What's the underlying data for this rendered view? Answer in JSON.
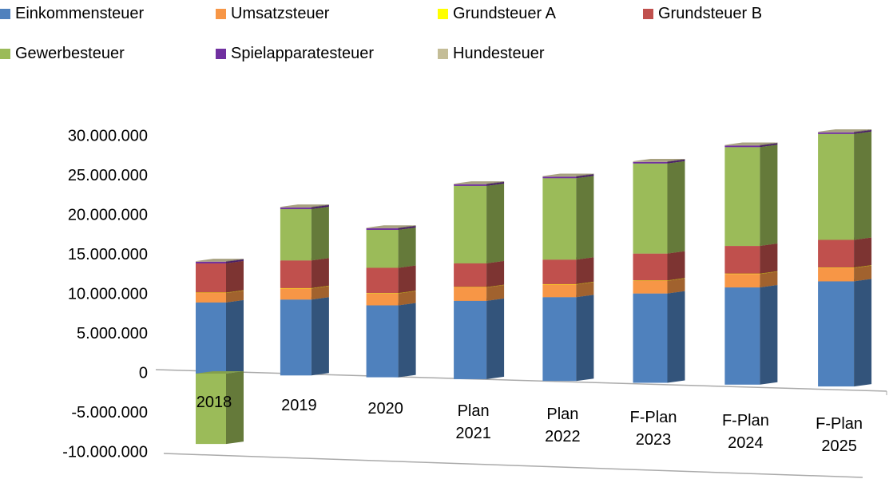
{
  "chart_data": {
    "type": "bar3d_stacked",
    "categories": [
      "2018",
      "2019",
      "2020",
      "Plan 2021",
      "Plan 2022",
      "F-Plan 2023",
      "F-Plan 2024",
      "F-Plan 2025"
    ],
    "series": [
      {
        "name": "Einkommensteuer",
        "color": "#4f81bd",
        "values": [
          9000000,
          9600000,
          9100000,
          9900000,
          10600000,
          11300000,
          12300000,
          13300000
        ]
      },
      {
        "name": "Umsatzsteuer",
        "color": "#f79646",
        "values": [
          1200000,
          1400000,
          1500000,
          1700000,
          1600000,
          1600000,
          1700000,
          1700000
        ]
      },
      {
        "name": "Grundsteuer A",
        "color": "#ffff00",
        "values": [
          50000,
          50000,
          50000,
          50000,
          50000,
          50000,
          50000,
          50000
        ]
      },
      {
        "name": "Grundsteuer B",
        "color": "#c0504d",
        "values": [
          3700000,
          3500000,
          3200000,
          3000000,
          3100000,
          3400000,
          3500000,
          3500000
        ]
      },
      {
        "name": "Gewerbesteuer",
        "color": "#9bbb59",
        "values": [
          -8900000,
          6500000,
          4800000,
          9800000,
          10300000,
          11400000,
          12500000,
          13400000
        ]
      },
      {
        "name": "Spielapparatesteuer",
        "color": "#7030a0",
        "values": [
          200000,
          200000,
          200000,
          200000,
          200000,
          200000,
          200000,
          200000
        ]
      },
      {
        "name": "Hundesteuer",
        "color": "#c4bd97",
        "values": [
          80000,
          80000,
          80000,
          80000,
          80000,
          80000,
          80000,
          80000
        ]
      }
    ],
    "ylim": [
      -10000000,
      30000000
    ],
    "yticks": [
      {
        "value": -10000000,
        "label": "-10.000.000"
      },
      {
        "value": -5000000,
        "label": "-5.000.000"
      },
      0,
      {
        "value": 5000000,
        "label": "5.000.000"
      },
      {
        "value": 10000000,
        "label": "10.000.000"
      },
      {
        "value": 15000000,
        "label": "15.000.000"
      },
      {
        "value": 20000000,
        "label": "20.000.000"
      },
      {
        "value": 25000000,
        "label": "25.000.000"
      },
      {
        "value": 30000000,
        "label": "30.000.000"
      }
    ],
    "legend": "top"
  }
}
